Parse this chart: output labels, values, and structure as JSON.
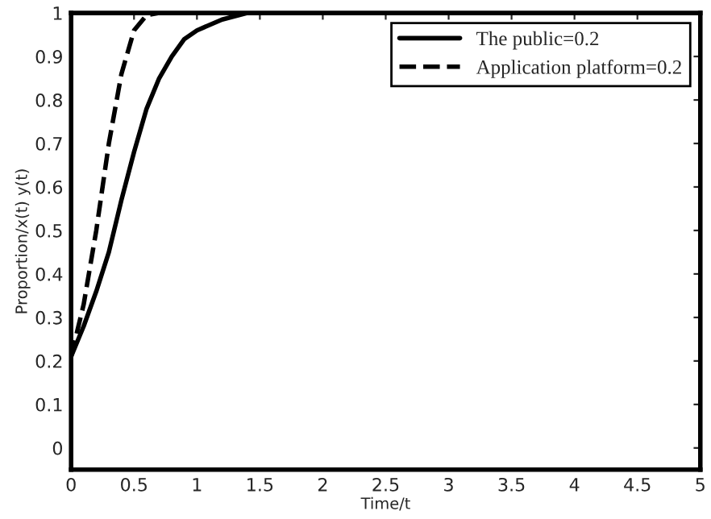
{
  "chart_data": {
    "type": "line",
    "xlabel": "Time/t",
    "ylabel": "Proportion/x(t) y(t)",
    "xlim": [
      0,
      5
    ],
    "ylim": [
      -0.05,
      1
    ],
    "xticks": [
      0,
      0.5,
      1,
      1.5,
      2,
      2.5,
      3,
      3.5,
      4,
      4.5,
      5
    ],
    "yticks": [
      0,
      0.1,
      0.2,
      0.3,
      0.4,
      0.5,
      0.6,
      0.7,
      0.8,
      0.9,
      1
    ],
    "grid": false,
    "legend": "top right",
    "marker": "none",
    "series": [
      {
        "name": "The public=0.2",
        "color": "#000000",
        "line_style": "solid",
        "x": [
          0,
          0.1,
          0.2,
          0.3,
          0.4,
          0.5,
          0.6,
          0.7,
          0.8,
          0.9,
          1.0,
          1.2,
          1.4,
          5
        ],
        "values": [
          0.21,
          0.28,
          0.36,
          0.45,
          0.57,
          0.68,
          0.78,
          0.85,
          0.9,
          0.94,
          0.96,
          0.985,
          1.0,
          1.0
        ]
      },
      {
        "name": "Application platform=0.2",
        "color": "#000000",
        "line_style": "dashed",
        "x": [
          0,
          0.1,
          0.2,
          0.3,
          0.4,
          0.5,
          0.6,
          0.7,
          5
        ],
        "values": [
          0.21,
          0.33,
          0.5,
          0.7,
          0.86,
          0.96,
          0.995,
          1.0,
          1.0
        ]
      }
    ]
  }
}
